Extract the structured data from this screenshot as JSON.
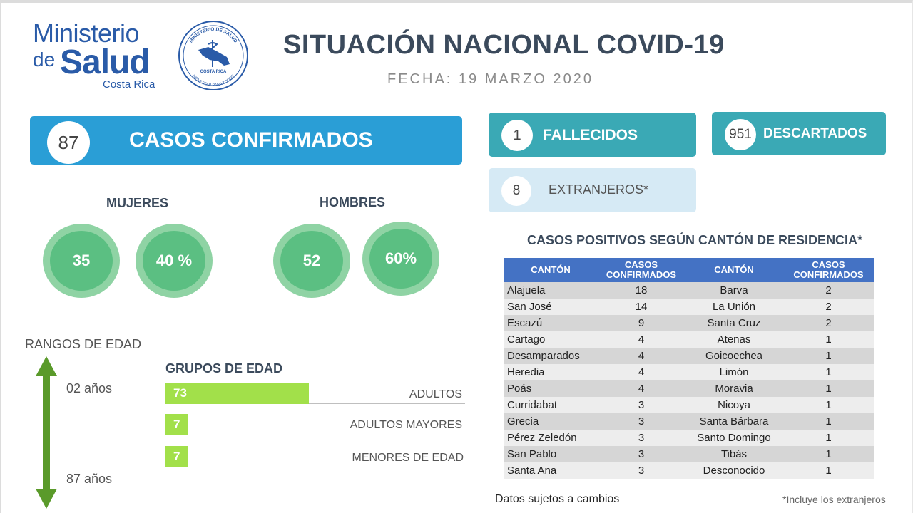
{
  "logo": {
    "line1": "Ministerio",
    "line2a": "de",
    "line2b": "Salud",
    "line3": "Costa Rica",
    "seal_top": "MINISTERIO DE SALUD",
    "seal_mid": "COSTA RICA",
    "seal_bottom": "BIENESTAR PARA TODOS"
  },
  "header": {
    "title": "SITUACIÓN NACIONAL COVID-19",
    "date": "FECHA: 19  MARZO 2020"
  },
  "confirmed": {
    "value": "87",
    "label": "CASOS CONFIRMADOS"
  },
  "deaths": {
    "value": "1",
    "label": "FALLECIDOS"
  },
  "discarded": {
    "value": "951",
    "label": "DESCARTADOS"
  },
  "foreigners": {
    "value": "8",
    "label": "EXTRANJEROS*"
  },
  "women": {
    "label": "MUJERES",
    "count": "35",
    "percent": "40  %"
  },
  "men": {
    "label": "HOMBRES",
    "count": "52",
    "percent": "60%"
  },
  "age": {
    "ranges_label": "RANGOS DE EDAD",
    "min": "02 años",
    "max": "87 años",
    "groups_title": "GRUPOS DE EDAD",
    "groups": [
      {
        "value": "73",
        "label": "ADULTOS"
      },
      {
        "value": "7",
        "label": "ADULTOS MAYORES"
      },
      {
        "value": "7",
        "label": "MENORES DE EDAD"
      }
    ]
  },
  "table": {
    "title": "CASOS POSITIVOS SEGÚN CANTÓN DE RESIDENCIA*",
    "headers": [
      "CANTÓN",
      "CASOS CONFIRMADOS",
      "CANTÓN",
      "CASOS CONFIRMADOS"
    ],
    "rows": [
      [
        "Alajuela",
        "18",
        "Barva",
        "2"
      ],
      [
        "San José",
        "14",
        "La Unión",
        "2"
      ],
      [
        "Escazú",
        "9",
        "Santa Cruz",
        "2"
      ],
      [
        "Cartago",
        "4",
        "Atenas",
        "1"
      ],
      [
        "Desamparados",
        "4",
        "Goicoechea",
        "1"
      ],
      [
        "Heredia",
        "4",
        "Limón",
        "1"
      ],
      [
        "Poás",
        "4",
        "Moravia",
        "1"
      ],
      [
        "Curridabat",
        "3",
        "Nicoya",
        "1"
      ],
      [
        "Grecia",
        "3",
        "Santa Bárbara",
        "1"
      ],
      [
        "Pérez Zeledón",
        "3",
        "Santo Domingo",
        "1"
      ],
      [
        "San Pablo",
        "3",
        "Tibás",
        "1"
      ],
      [
        "Santa Ana",
        "3",
        "Desconocido",
        "1"
      ]
    ]
  },
  "footer": {
    "note": "Datos sujetos a cambios",
    "footnote": "*Incluye los extranjeros"
  },
  "colors": {
    "primary_blue": "#2a9ed6",
    "teal": "#3aa9b5",
    "light_blue": "#d6eaf5",
    "green": "#5bbf82",
    "lime": "#a2e04a",
    "table_header": "#4472c4"
  }
}
